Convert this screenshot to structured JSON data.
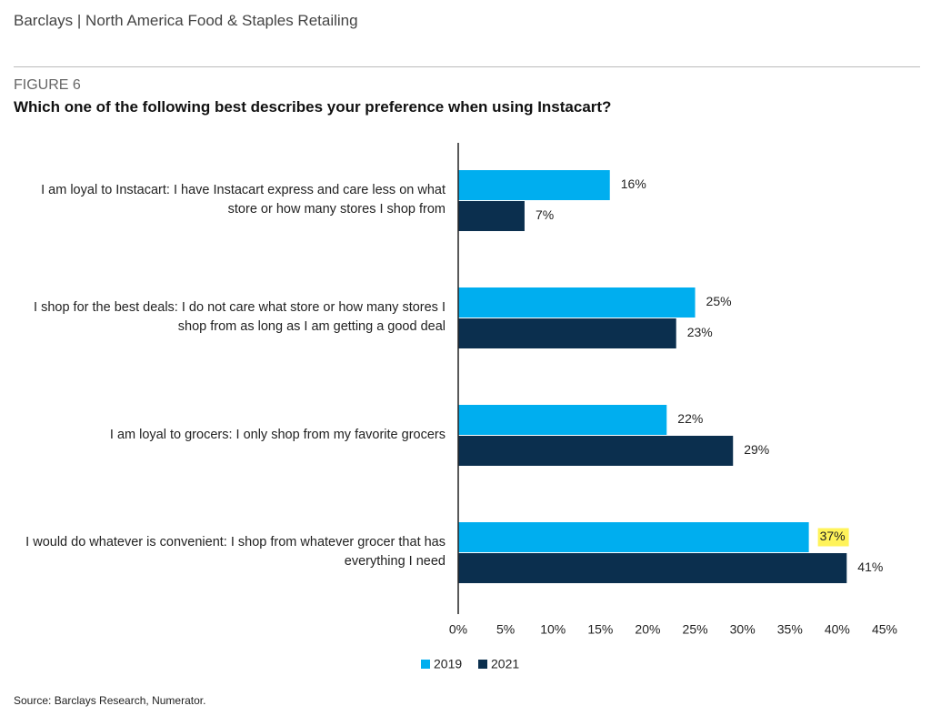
{
  "header": {
    "title": "Barclays | North America Food & Staples Retailing"
  },
  "chart_data": {
    "type": "hbar",
    "figure": "FIGURE 6",
    "title": "Which one of the following best describes your preference when using Instacart?",
    "categories": [
      "I am loyal to Instacart: I have Instacart express and care less on what store or how many stores I shop from",
      "I shop for the best deals: I do not care what store or how many stores I shop from as long as I am getting a good deal",
      "I am loyal to grocers: I only shop from my favorite grocers",
      "I would do whatever is convenient: I shop from whatever grocer that has everything I need"
    ],
    "series": [
      {
        "name": "2019",
        "color": "#00aeef",
        "values": [
          16,
          25,
          22,
          37
        ],
        "value_labels": [
          "16%",
          "25%",
          "22%",
          "37%"
        ],
        "highlight_index": 3,
        "highlight_color": "#fff35a"
      },
      {
        "name": "2021",
        "color": "#0b2f4e",
        "values": [
          7,
          23,
          29,
          41
        ],
        "value_labels": [
          "7%",
          "23%",
          "29%",
          "41%"
        ]
      }
    ],
    "xlim": [
      0,
      45
    ],
    "xticks": [
      {
        "value": 0,
        "label": "0%"
      },
      {
        "value": 5,
        "label": "5%"
      },
      {
        "value": 10,
        "label": "10%"
      },
      {
        "value": 15,
        "label": "15%"
      },
      {
        "value": 20,
        "label": "20%"
      },
      {
        "value": 25,
        "label": "25%"
      },
      {
        "value": 30,
        "label": "30%"
      },
      {
        "value": 35,
        "label": "35%"
      },
      {
        "value": 40,
        "label": "40%"
      },
      {
        "value": 45,
        "label": "45%"
      }
    ],
    "legend": "bottom",
    "source": "Source: Barclays Research, Numerator."
  }
}
